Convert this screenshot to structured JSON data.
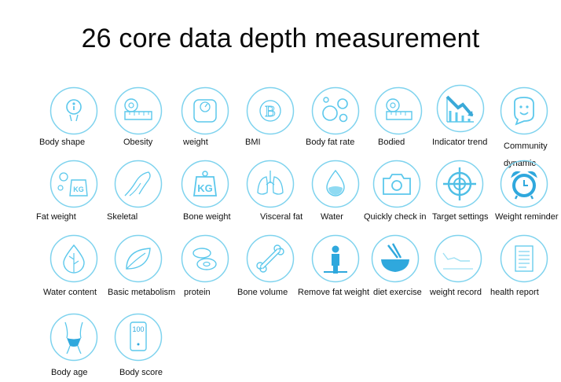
{
  "title": "26 core data depth measurement",
  "accent": "#5cc8ec",
  "items": [
    {
      "label": "Body shape",
      "icon": "body-shape-icon"
    },
    {
      "label": "Obesity",
      "icon": "tape-measure-icon"
    },
    {
      "label": "weight",
      "icon": "scale-icon"
    },
    {
      "label": "BMI",
      "icon": "bmi-icon"
    },
    {
      "label": "Body fat rate",
      "icon": "molecule-icon"
    },
    {
      "label": "Bodied",
      "icon": "tape-measure-icon"
    },
    {
      "label": "Indicator trend",
      "icon": "trend-chart-icon"
    },
    {
      "label": "Community dynamic",
      "icon": "smiley-chat-icon"
    },
    {
      "label": "Fat weight",
      "icon": "fat-weight-icon"
    },
    {
      "label": "Skeletal",
      "icon": "skeletal-arm-icon"
    },
    {
      "label": "Bone weight",
      "icon": "kg-weight-icon"
    },
    {
      "label": "Visceral fat",
      "icon": "lungs-icon"
    },
    {
      "label": "Water",
      "icon": "water-drop-icon"
    },
    {
      "label": "Quickly check in",
      "icon": "camera-icon"
    },
    {
      "label": "Target settings",
      "icon": "crosshair-icon"
    },
    {
      "label": "Weight reminder",
      "icon": "alarm-clock-icon"
    },
    {
      "label": "Water content",
      "icon": "leaf-drop-icon"
    },
    {
      "label": "Basic metabolism",
      "icon": "leaf-icon"
    },
    {
      "label": "protein",
      "icon": "protein-icon"
    },
    {
      "label": "Bone volume",
      "icon": "bone-icon"
    },
    {
      "label": "Remove fat weight",
      "icon": "person-icon"
    },
    {
      "label": "diet exercise",
      "icon": "bowl-icon"
    },
    {
      "label": "weight record",
      "icon": "line-chart-icon"
    },
    {
      "label": "health report",
      "icon": "report-icon"
    },
    {
      "label": "Body age",
      "icon": "torso-icon"
    },
    {
      "label": "Body score",
      "icon": "score-phone-icon"
    }
  ]
}
